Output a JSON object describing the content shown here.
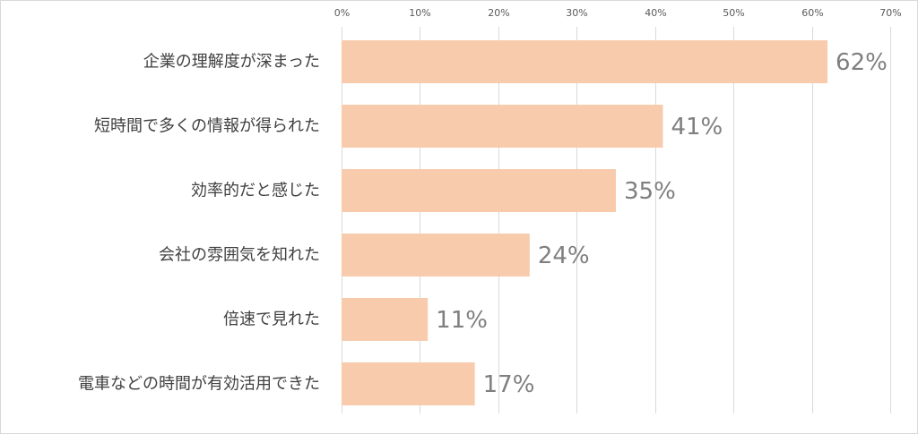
{
  "chart_data": {
    "type": "bar",
    "orientation": "horizontal",
    "categories": [
      "企業の理解度が深まった",
      "短時間で多くの情報が得られた",
      "効率的だと感じた",
      "会社の雰囲気を知れた",
      "倍速で見れた",
      "電車などの時間が有効活用できた"
    ],
    "values": [
      62,
      41,
      35,
      24,
      11,
      17
    ],
    "data_labels": [
      "62%",
      "41%",
      "35%",
      "24%",
      "11%",
      "17%"
    ],
    "ticks": [
      0,
      10,
      20,
      30,
      40,
      50,
      60,
      70
    ],
    "tick_labels": [
      "0%",
      "10%",
      "20%",
      "30%",
      "40%",
      "50%",
      "60%",
      "70%"
    ],
    "xlim": [
      0,
      70
    ],
    "title": "",
    "xlabel": "",
    "ylabel": "",
    "grid": true,
    "axis_position": "top",
    "legend": "none",
    "colors": {
      "bar": "#f8cbad",
      "grid": "#d9d9d9",
      "category_text": "#404040",
      "data_label_text": "#7f7f7f",
      "tick_text": "#595959"
    }
  }
}
